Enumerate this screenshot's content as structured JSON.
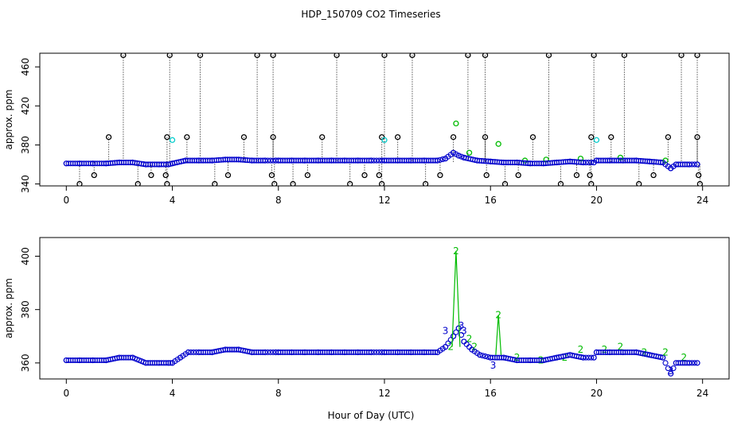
{
  "figure": {
    "title": "HDP_150709  CO2 Timeseries",
    "xlabel": "Hour of Day (UTC)"
  },
  "colors": {
    "outlier": "#000000",
    "series_blue": "#0000cc",
    "series_green": "#00bb00",
    "series_cyan": "#00cccc",
    "grid": "#000000"
  },
  "chart_data": [
    {
      "type": "scatter",
      "name": "top-panel",
      "ylabel": "approx. ppm",
      "xlim": [
        -1,
        25
      ],
      "ylim": [
        338,
        474
      ],
      "xticks": [
        0,
        4,
        8,
        12,
        16,
        20,
        24
      ],
      "xtick_labels": [
        "0",
        "4",
        "8",
        "12",
        "16",
        "20",
        "24"
      ],
      "yticks": [
        340,
        380,
        420,
        460
      ],
      "ytick_labels": [
        "340",
        "380",
        "420",
        "460"
      ],
      "series": [
        {
          "name": "outliers-high",
          "color": "black",
          "marker": "circle",
          "x": [
            2.15,
            3.9,
            5.05,
            7.2,
            7.8,
            10.2,
            12.0,
            13.05,
            15.15,
            15.8,
            18.2,
            19.9,
            21.05,
            23.2,
            23.8
          ],
          "y": [
            472,
            472,
            472,
            472,
            472,
            472,
            472,
            472,
            472,
            472,
            472,
            472,
            472,
            472,
            472
          ]
        },
        {
          "name": "outliers-mid",
          "color": "black",
          "marker": "circle",
          "x": [
            1.6,
            3.8,
            4.55,
            6.7,
            7.8,
            9.65,
            11.9,
            12.5,
            14.6,
            15.8,
            17.6,
            19.8,
            20.55,
            22.7,
            23.8
          ],
          "y": [
            388,
            388,
            388,
            388,
            388,
            388,
            388,
            388,
            388,
            388,
            388,
            388,
            388,
            388,
            388
          ]
        },
        {
          "name": "outliers-low",
          "color": "black",
          "marker": "circle",
          "x": [
            0.5,
            1.05,
            2.7,
            3.2,
            3.75,
            3.8,
            5.6,
            6.1,
            7.75,
            7.85,
            8.55,
            9.1,
            10.7,
            11.25,
            11.8,
            11.9,
            13.55,
            14.1,
            15.85,
            16.55,
            17.05,
            18.65,
            19.25,
            19.75,
            19.8,
            21.6,
            22.15,
            23.85,
            23.9
          ],
          "y": [
            340,
            349,
            340,
            349,
            349,
            340,
            340,
            349,
            349,
            340,
            340,
            349,
            340,
            349,
            349,
            340,
            340,
            349,
            349,
            340,
            349,
            340,
            349,
            349,
            340,
            340,
            349,
            349,
            340
          ]
        },
        {
          "name": "co2-blue",
          "color": "blue",
          "marker": "circle",
          "x": [
            0,
            0.5,
            1.0,
            1.5,
            2.0,
            2.5,
            3.0,
            3.5,
            3.85,
            4.0,
            4.5,
            5.0,
            5.5,
            6.0,
            6.5,
            7.0,
            7.5,
            7.9,
            8.0,
            8.5,
            9.0,
            9.5,
            10.0,
            10.5,
            11.0,
            11.5,
            11.9,
            12.0,
            12.5,
            13.0,
            13.5,
            14.0,
            14.3,
            14.6,
            14.8,
            15.0,
            15.5,
            16.0,
            16.5,
            17.0,
            17.5,
            18.0,
            18.5,
            19.0,
            19.5,
            19.9,
            20.0,
            20.5,
            21.0,
            21.5,
            22.0,
            22.5,
            22.8,
            23.0,
            23.5,
            23.8
          ],
          "y": [
            361,
            361,
            361,
            361,
            362,
            362,
            360,
            360,
            360,
            361,
            364,
            364,
            364,
            365,
            365,
            364,
            364,
            364,
            364,
            364,
            364,
            364,
            364,
            364,
            364,
            364,
            364,
            364,
            364,
            364,
            364,
            364,
            366,
            372,
            369,
            367,
            364,
            363,
            362,
            362,
            361,
            361,
            362,
            363,
            362,
            362,
            364,
            364,
            364,
            364,
            363,
            362,
            356,
            360,
            360,
            360
          ]
        },
        {
          "name": "co2-green",
          "color": "green",
          "marker": "circle",
          "x": [
            14.7,
            15.2,
            16.3,
            17.3,
            18.1,
            19.4,
            20.9,
            22.6
          ],
          "y": [
            402,
            372,
            381,
            364,
            365,
            366,
            367,
            364
          ]
        },
        {
          "name": "co2-cyan",
          "color": "cyan",
          "marker": "circle",
          "x": [
            4.0,
            12.0,
            20.0
          ],
          "y": [
            385,
            385,
            385
          ]
        }
      ]
    },
    {
      "type": "scatter",
      "name": "bottom-panel",
      "ylabel": "approx. ppm",
      "xlim": [
        -1,
        25
      ],
      "ylim": [
        354,
        407
      ],
      "xticks": [
        0,
        4,
        8,
        12,
        16,
        20,
        24
      ],
      "xtick_labels": [
        "0",
        "4",
        "8",
        "12",
        "16",
        "20",
        "24"
      ],
      "yticks": [
        360,
        380,
        400
      ],
      "ytick_labels": [
        "360",
        "380",
        "400"
      ],
      "series": [
        {
          "name": "co2-blue",
          "color": "blue",
          "marker": "circle",
          "x": [
            0,
            0.5,
            1.0,
            1.5,
            2.0,
            2.5,
            3.0,
            3.5,
            3.85,
            4.0,
            4.3,
            4.6,
            5.0,
            5.5,
            6.0,
            6.5,
            7.0,
            7.5,
            7.9,
            8.0,
            8.5,
            9.0,
            9.5,
            10.0,
            10.5,
            11.0,
            11.5,
            11.9,
            12.0,
            12.5,
            13.0,
            13.5,
            14.0,
            14.3,
            14.6,
            14.8,
            15.0,
            15.3,
            15.6,
            16.0,
            16.5,
            17.0,
            17.5,
            18.0,
            18.5,
            19.0,
            19.5,
            19.9,
            20.0,
            20.5,
            21.0,
            21.5,
            22.0,
            22.5,
            22.8,
            23.0,
            23.5,
            23.8
          ],
          "y": [
            361,
            361,
            361,
            361,
            362,
            362,
            360,
            360,
            360,
            360,
            362,
            364,
            364,
            364,
            365,
            365,
            364,
            364,
            364,
            364,
            364,
            364,
            364,
            364,
            364,
            364,
            364,
            364,
            364,
            364,
            364,
            364,
            364,
            366,
            370,
            373,
            368,
            365,
            363,
            362,
            362,
            361,
            361,
            361,
            362,
            363,
            362,
            362,
            364,
            364,
            364,
            364,
            363,
            362,
            356,
            360,
            360,
            360
          ]
        },
        {
          "name": "co2-green",
          "color": "green",
          "marker": "label",
          "label": "2",
          "x": [
            14.5,
            14.7,
            15.2,
            15.4,
            16.3,
            17.0,
            17.9,
            18.8,
            19.4,
            20.3,
            20.9,
            21.8,
            22.6,
            23.3
          ],
          "y": [
            366,
            402,
            369,
            366,
            378,
            362,
            361,
            362,
            365,
            365,
            366,
            364,
            364,
            362
          ]
        },
        {
          "name": "co2-blue-labels",
          "color": "blue",
          "marker": "label",
          "label": "3",
          "x": [
            14.3,
            14.9,
            15.0,
            16.1,
            22.8
          ],
          "y": [
            372,
            374,
            372,
            359,
            357
          ]
        }
      ]
    }
  ]
}
